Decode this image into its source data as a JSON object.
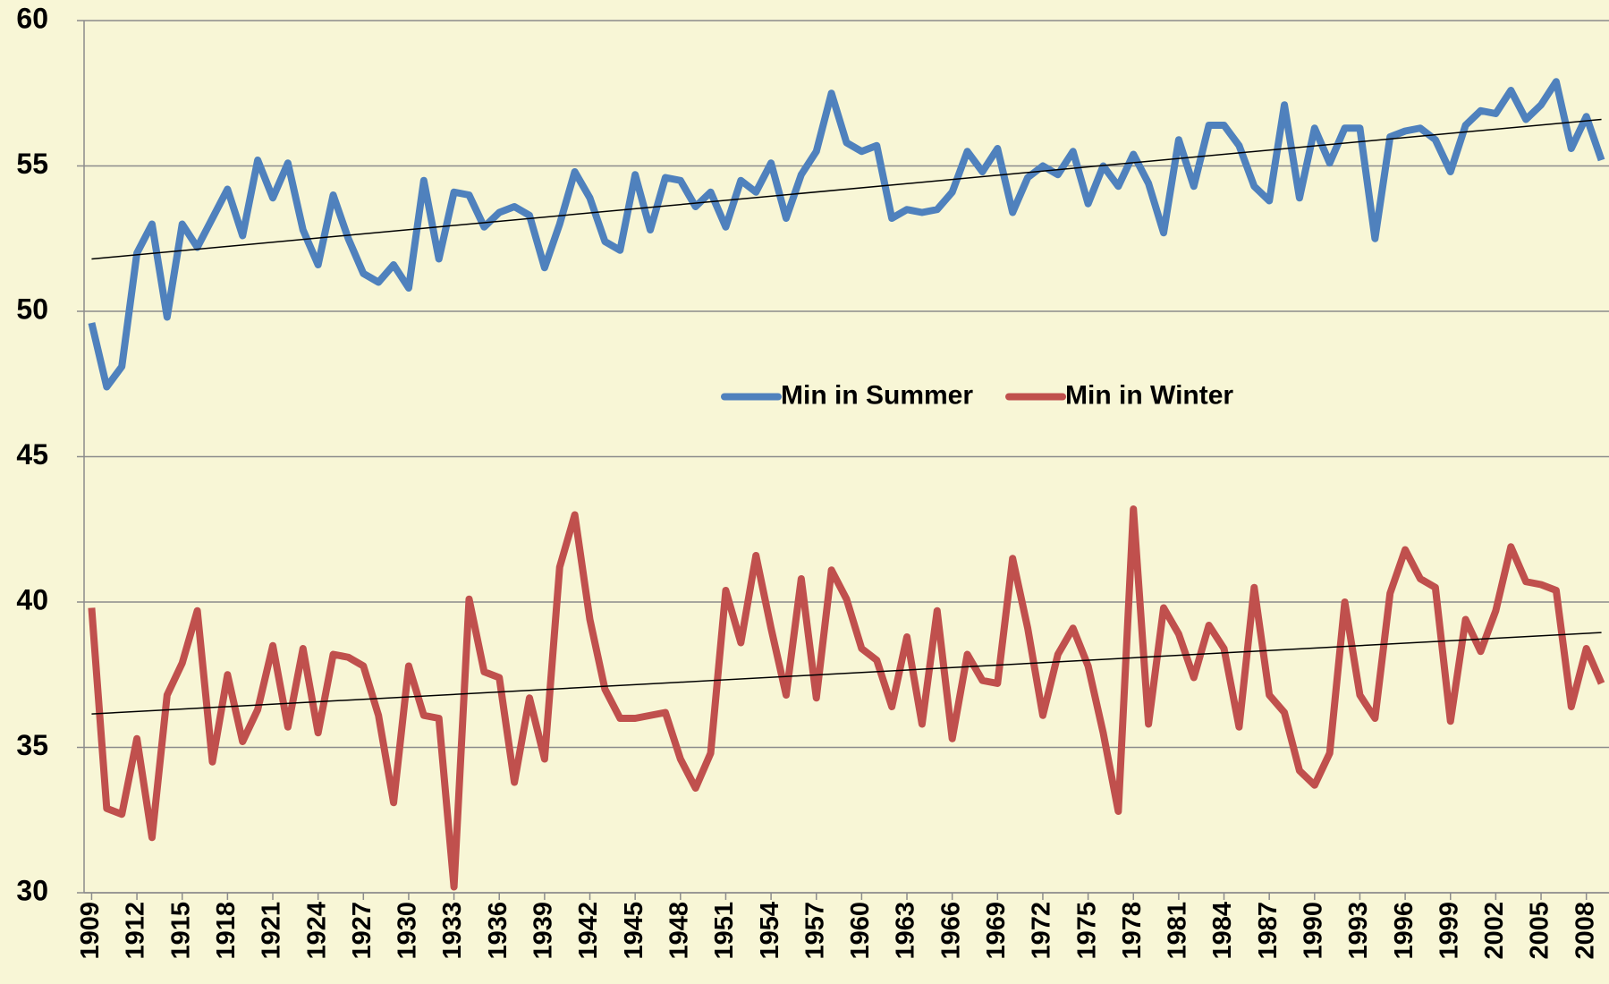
{
  "chart_data": {
    "type": "line",
    "x": [
      1909,
      1910,
      1911,
      1912,
      1913,
      1914,
      1915,
      1916,
      1917,
      1918,
      1919,
      1920,
      1921,
      1922,
      1923,
      1924,
      1925,
      1926,
      1927,
      1928,
      1929,
      1930,
      1931,
      1932,
      1933,
      1934,
      1935,
      1936,
      1937,
      1938,
      1939,
      1940,
      1941,
      1942,
      1943,
      1944,
      1945,
      1946,
      1947,
      1948,
      1949,
      1950,
      1951,
      1952,
      1953,
      1954,
      1955,
      1956,
      1957,
      1958,
      1959,
      1960,
      1961,
      1962,
      1963,
      1964,
      1965,
      1966,
      1967,
      1968,
      1969,
      1970,
      1971,
      1972,
      1973,
      1974,
      1975,
      1976,
      1977,
      1978,
      1979,
      1980,
      1981,
      1982,
      1983,
      1984,
      1985,
      1986,
      1987,
      1988,
      1989,
      1990,
      1991,
      1992,
      1993,
      1994,
      1995,
      1996,
      1997,
      1998,
      1999,
      2000,
      2001,
      2002,
      2003,
      2004,
      2005,
      2006,
      2007,
      2008,
      2009
    ],
    "series": [
      {
        "name": "Min in Summer",
        "color": "#4f81bd",
        "trend": [
          51.8,
          56.6
        ],
        "values": [
          49.6,
          47.4,
          48.1,
          52.0,
          53.0,
          49.8,
          53.0,
          52.2,
          53.2,
          54.2,
          52.6,
          55.2,
          53.9,
          55.1,
          52.8,
          51.6,
          54.0,
          52.5,
          51.3,
          51.0,
          51.6,
          50.8,
          54.5,
          51.8,
          54.1,
          54.0,
          52.9,
          53.4,
          53.6,
          53.3,
          51.5,
          53.0,
          54.8,
          53.9,
          52.4,
          52.1,
          54.7,
          52.8,
          54.6,
          54.5,
          53.6,
          54.1,
          52.9,
          54.5,
          54.1,
          55.1,
          53.2,
          54.7,
          55.5,
          57.5,
          55.8,
          55.5,
          55.7,
          53.2,
          53.5,
          53.4,
          53.5,
          54.1,
          55.5,
          54.8,
          55.6,
          53.4,
          54.6,
          55.0,
          54.7,
          55.5,
          53.7,
          55.0,
          54.3,
          55.4,
          54.4,
          52.7,
          55.9,
          54.3,
          56.4,
          56.4,
          55.7,
          54.3,
          53.8,
          57.1,
          53.9,
          56.3,
          55.1,
          56.3,
          56.3,
          52.5,
          56.0,
          56.2,
          56.3,
          55.9,
          54.8,
          56.4,
          56.9,
          56.8,
          57.6,
          56.6,
          57.1,
          57.9,
          55.6,
          56.7,
          55.2
        ]
      },
      {
        "name": "Min in Winter",
        "color": "#c0504d",
        "trend": [
          36.15,
          38.95
        ],
        "values": [
          39.8,
          32.9,
          32.7,
          35.3,
          31.9,
          36.8,
          37.9,
          39.7,
          34.5,
          37.5,
          35.2,
          36.3,
          38.5,
          35.7,
          38.4,
          35.5,
          38.2,
          38.1,
          37.8,
          36.1,
          33.1,
          37.8,
          36.1,
          36.0,
          30.2,
          40.1,
          37.6,
          37.4,
          33.8,
          36.7,
          34.6,
          41.2,
          43.0,
          39.4,
          37.0,
          36.0,
          36.0,
          36.1,
          36.2,
          34.6,
          33.6,
          34.8,
          40.4,
          38.6,
          41.6,
          39.1,
          36.8,
          40.8,
          36.7,
          41.1,
          40.1,
          38.4,
          38.0,
          36.4,
          38.8,
          35.8,
          39.7,
          35.3,
          38.2,
          37.3,
          37.2,
          41.5,
          39.1,
          36.1,
          38.2,
          39.1,
          37.8,
          35.5,
          32.8,
          43.2,
          35.8,
          39.8,
          38.9,
          37.4,
          39.2,
          38.4,
          35.7,
          40.5,
          36.8,
          36.2,
          34.2,
          33.7,
          34.8,
          40.0,
          36.8,
          36.0,
          40.3,
          41.8,
          40.8,
          40.5,
          35.9,
          39.4,
          38.3,
          39.7,
          41.9,
          40.7,
          40.6,
          40.4,
          36.4,
          38.4,
          37.2
        ]
      }
    ],
    "trend_color": "#000000",
    "xlim": [
      1908.5,
      2009.5
    ],
    "xticks": [
      1909,
      1912,
      1915,
      1918,
      1921,
      1924,
      1927,
      1930,
      1933,
      1936,
      1939,
      1942,
      1945,
      1948,
      1951,
      1954,
      1957,
      1960,
      1963,
      1966,
      1969,
      1972,
      1975,
      1978,
      1981,
      1984,
      1987,
      1990,
      1993,
      1996,
      1999,
      2002,
      2005,
      2008
    ],
    "ylim": [
      30,
      60
    ],
    "yticks": [
      30,
      35,
      40,
      45,
      50,
      55,
      60
    ],
    "grid": true,
    "legend": "center"
  }
}
